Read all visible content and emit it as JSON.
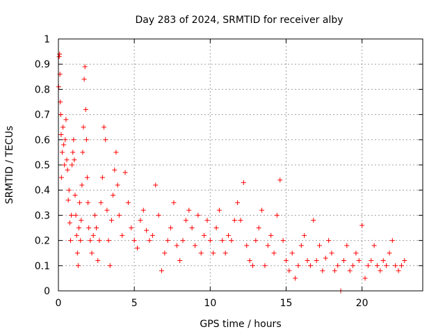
{
  "chart_data": {
    "type": "scatter",
    "title": "Day 283 of 2024, SRMTID for receiver alby",
    "xlabel": "GPS time / hours",
    "ylabel": "SRMTID / TECUs",
    "xlim": [
      0,
      24
    ],
    "ylim": [
      0,
      1
    ],
    "xticks": [
      0,
      5,
      10,
      15,
      20
    ],
    "yticks": [
      0,
      0.1,
      0.2,
      0.3,
      0.4,
      0.5,
      0.6,
      0.7,
      0.8,
      0.9,
      1
    ],
    "grid": true,
    "marker": "+",
    "marker_color": "#ff0000",
    "series": [
      {
        "name": "SRMTID",
        "points": [
          [
            0.02,
            0.81
          ],
          [
            0.05,
            0.93
          ],
          [
            0.08,
            0.94
          ],
          [
            0.1,
            0.86
          ],
          [
            0.12,
            0.75
          ],
          [
            0.15,
            0.7
          ],
          [
            0.18,
            0.62
          ],
          [
            0.2,
            0.45
          ],
          [
            0.25,
            0.55
          ],
          [
            0.3,
            0.65
          ],
          [
            0.35,
            0.58
          ],
          [
            0.4,
            0.5
          ],
          [
            0.45,
            0.6
          ],
          [
            0.5,
            0.68
          ],
          [
            0.55,
            0.52
          ],
          [
            0.6,
            0.48
          ],
          [
            0.65,
            0.36
          ],
          [
            0.7,
            0.4
          ],
          [
            0.75,
            0.27
          ],
          [
            0.8,
            0.2
          ],
          [
            0.85,
            0.3
          ],
          [
            0.9,
            0.5
          ],
          [
            0.95,
            0.55
          ],
          [
            1.0,
            0.6
          ],
          [
            1.05,
            0.52
          ],
          [
            1.1,
            0.38
          ],
          [
            1.15,
            0.3
          ],
          [
            1.2,
            0.22
          ],
          [
            1.25,
            0.15
          ],
          [
            1.3,
            0.1
          ],
          [
            1.35,
            0.25
          ],
          [
            1.4,
            0.35
          ],
          [
            1.45,
            0.2
          ],
          [
            1.5,
            0.28
          ],
          [
            1.55,
            0.42
          ],
          [
            1.6,
            0.55
          ],
          [
            1.65,
            0.65
          ],
          [
            1.7,
            0.84
          ],
          [
            1.75,
            0.89
          ],
          [
            1.8,
            0.72
          ],
          [
            1.85,
            0.6
          ],
          [
            1.9,
            0.45
          ],
          [
            1.95,
            0.35
          ],
          [
            2.0,
            0.25
          ],
          [
            2.1,
            0.2
          ],
          [
            2.2,
            0.15
          ],
          [
            2.3,
            0.22
          ],
          [
            2.4,
            0.3
          ],
          [
            2.5,
            0.25
          ],
          [
            2.6,
            0.12
          ],
          [
            2.7,
            0.2
          ],
          [
            2.8,
            0.35
          ],
          [
            2.9,
            0.45
          ],
          [
            3.0,
            0.65
          ],
          [
            3.1,
            0.6
          ],
          [
            3.2,
            0.32
          ],
          [
            3.3,
            0.2
          ],
          [
            3.4,
            0.1
          ],
          [
            3.5,
            0.28
          ],
          [
            3.6,
            0.38
          ],
          [
            3.7,
            0.48
          ],
          [
            3.8,
            0.55
          ],
          [
            3.9,
            0.42
          ],
          [
            4.0,
            0.3
          ],
          [
            4.2,
            0.22
          ],
          [
            4.4,
            0.47
          ],
          [
            4.6,
            0.35
          ],
          [
            4.8,
            0.25
          ],
          [
            5.0,
            0.2
          ],
          [
            5.2,
            0.17
          ],
          [
            5.4,
            0.28
          ],
          [
            5.6,
            0.32
          ],
          [
            5.8,
            0.24
          ],
          [
            6.0,
            0.2
          ],
          [
            6.2,
            0.22
          ],
          [
            6.4,
            0.42
          ],
          [
            6.6,
            0.3
          ],
          [
            6.8,
            0.08
          ],
          [
            7.0,
            0.15
          ],
          [
            7.2,
            0.2
          ],
          [
            7.4,
            0.25
          ],
          [
            7.6,
            0.35
          ],
          [
            7.8,
            0.18
          ],
          [
            8.0,
            0.12
          ],
          [
            8.2,
            0.2
          ],
          [
            8.4,
            0.28
          ],
          [
            8.6,
            0.32
          ],
          [
            8.8,
            0.25
          ],
          [
            9.0,
            0.18
          ],
          [
            9.2,
            0.3
          ],
          [
            9.4,
            0.15
          ],
          [
            9.6,
            0.22
          ],
          [
            9.8,
            0.28
          ],
          [
            10.0,
            0.2
          ],
          [
            10.2,
            0.15
          ],
          [
            10.4,
            0.25
          ],
          [
            10.6,
            0.32
          ],
          [
            10.8,
            0.2
          ],
          [
            11.0,
            0.15
          ],
          [
            11.2,
            0.22
          ],
          [
            11.4,
            0.2
          ],
          [
            11.6,
            0.28
          ],
          [
            11.8,
            0.35
          ],
          [
            12.0,
            0.28
          ],
          [
            12.2,
            0.43
          ],
          [
            12.4,
            0.18
          ],
          [
            12.6,
            0.12
          ],
          [
            12.8,
            0.1
          ],
          [
            13.0,
            0.2
          ],
          [
            13.2,
            0.25
          ],
          [
            13.4,
            0.32
          ],
          [
            13.6,
            0.1
          ],
          [
            13.8,
            0.18
          ],
          [
            14.0,
            0.22
          ],
          [
            14.2,
            0.15
          ],
          [
            14.4,
            0.3
          ],
          [
            14.6,
            0.44
          ],
          [
            14.8,
            0.2
          ],
          [
            15.0,
            0.12
          ],
          [
            15.2,
            0.08
          ],
          [
            15.4,
            0.15
          ],
          [
            15.6,
            0.05
          ],
          [
            15.8,
            0.1
          ],
          [
            16.0,
            0.18
          ],
          [
            16.2,
            0.22
          ],
          [
            16.4,
            0.12
          ],
          [
            16.6,
            0.1
          ],
          [
            16.8,
            0.28
          ],
          [
            17.0,
            0.12
          ],
          [
            17.2,
            0.18
          ],
          [
            17.4,
            0.08
          ],
          [
            17.6,
            0.13
          ],
          [
            17.8,
            0.2
          ],
          [
            18.0,
            0.15
          ],
          [
            18.2,
            0.08
          ],
          [
            18.4,
            0.1
          ],
          [
            18.6,
            0.0
          ],
          [
            18.8,
            0.12
          ],
          [
            19.0,
            0.18
          ],
          [
            19.2,
            0.08
          ],
          [
            19.4,
            0.1
          ],
          [
            19.6,
            0.15
          ],
          [
            19.8,
            0.12
          ],
          [
            20.0,
            0.26
          ],
          [
            20.2,
            0.05
          ],
          [
            20.4,
            0.1
          ],
          [
            20.6,
            0.12
          ],
          [
            20.8,
            0.18
          ],
          [
            21.0,
            0.1
          ],
          [
            21.2,
            0.08
          ],
          [
            21.4,
            0.12
          ],
          [
            21.6,
            0.1
          ],
          [
            21.8,
            0.15
          ],
          [
            22.0,
            0.2
          ],
          [
            22.2,
            0.1
          ],
          [
            22.4,
            0.08
          ],
          [
            22.6,
            0.1
          ],
          [
            22.8,
            0.12
          ]
        ]
      }
    ]
  }
}
